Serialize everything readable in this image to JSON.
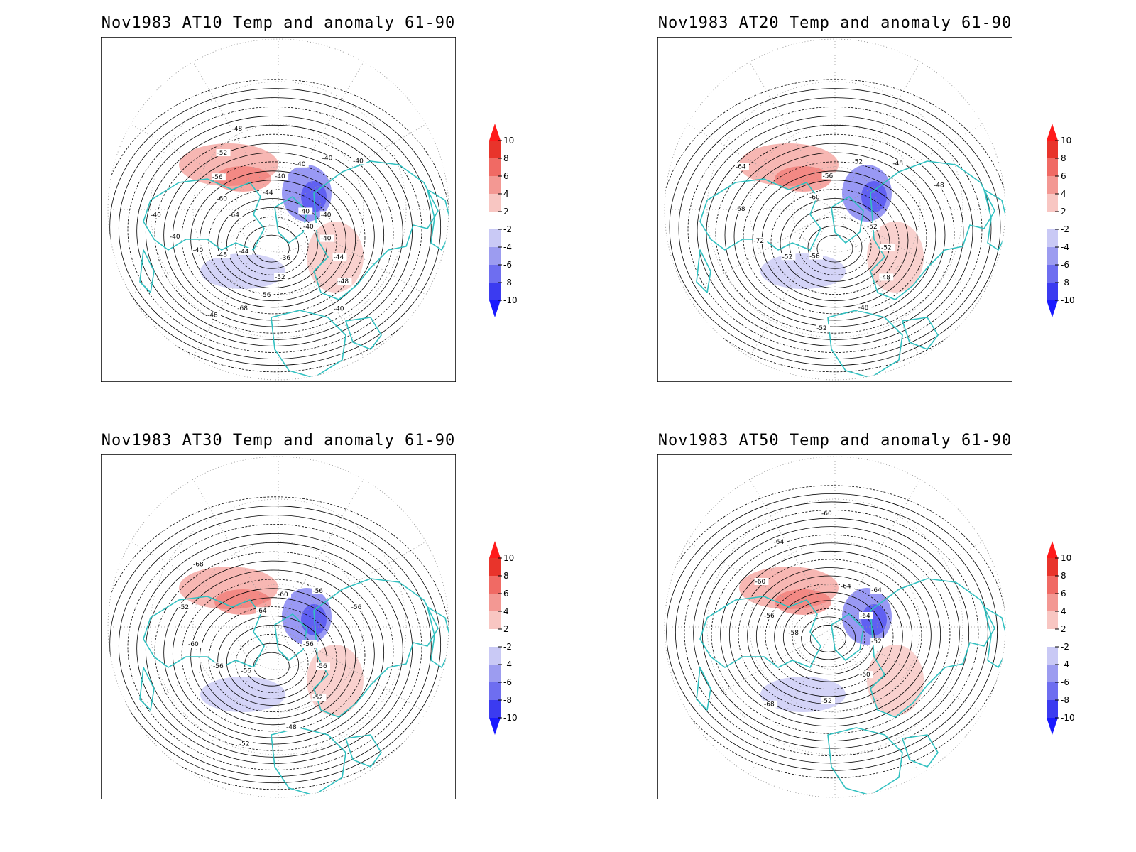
{
  "panels": [
    {
      "id": "p1",
      "title": "Nov1983 AT10 Temp and anomaly 61-90",
      "contour_labels": [
        "-40",
        "-40",
        "-44",
        "-48",
        "-40",
        "-36",
        "-52",
        "-56",
        "-68",
        "-48",
        "-44",
        "-48",
        "-40",
        "-40",
        "-40",
        "-64",
        "-60",
        "-56",
        "-52",
        "-48",
        "-44",
        "-40",
        "-40",
        "-40",
        "-40",
        "-40",
        "-40"
      ]
    },
    {
      "id": "p2",
      "title": "Nov1983 AT20 Temp and anomaly 61-90",
      "contour_labels": [
        "-52",
        "-52",
        "-48",
        "-48",
        "-52",
        "-56",
        "-52",
        "-72",
        "-68",
        "-64",
        "-60",
        "-56",
        "-52",
        "-48",
        "-48"
      ]
    },
    {
      "id": "p3",
      "title": "Nov1983 AT30 Temp and anomaly 61-90",
      "contour_labels": [
        "-56",
        "-56",
        "-52",
        "-48",
        "-52",
        "-56",
        "-56",
        "-60",
        "-52",
        "-68",
        "-64",
        "-60",
        "-56",
        "-56"
      ]
    },
    {
      "id": "p4",
      "title": "Nov1983 AT50 Temp and anomaly 61-90",
      "contour_labels": [
        "-64",
        "-52",
        "-60",
        "-52",
        "-68",
        "-58",
        "-56",
        "-60",
        "-64",
        "-60",
        "-64",
        "-64"
      ]
    }
  ],
  "colorbar": {
    "ticks": [
      "10",
      "8",
      "6",
      "4",
      "2",
      "-2",
      "-4",
      "-6",
      "-8",
      "-10"
    ],
    "colors": [
      "#e8342b",
      "#f06a64",
      "#f39893",
      "#f8c6c2",
      "#ffffff",
      "#c9c9f5",
      "#9c9cf0",
      "#6e6ef0",
      "#3b3bf0"
    ],
    "max_color": "#ff1a1a",
    "min_color": "#1a1aff"
  },
  "colors": {
    "coast": "#30c0c0",
    "contour": "#000000",
    "grid": "#888888"
  }
}
